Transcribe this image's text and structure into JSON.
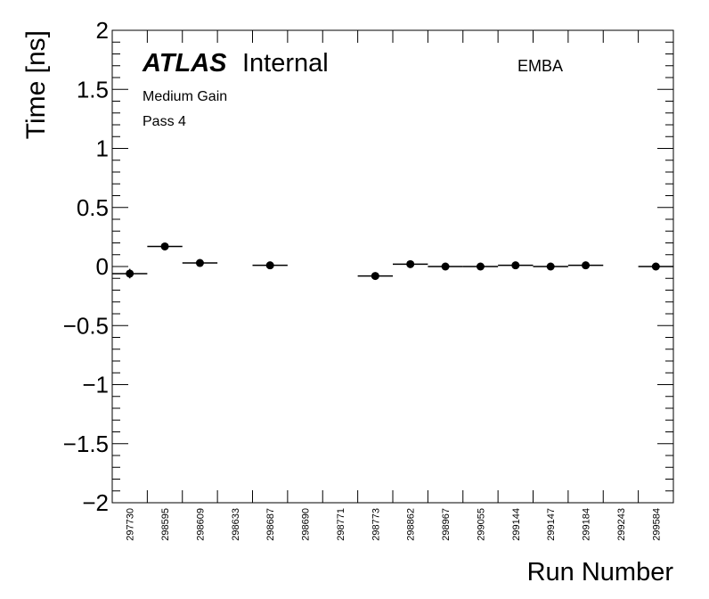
{
  "chart_data": {
    "type": "scatter",
    "title": "",
    "xlabel": "Run Number",
    "ylabel": "Time [ns]",
    "ylim": [
      -2,
      2
    ],
    "yticks": [
      {
        "value": 2,
        "label": "2"
      },
      {
        "value": 1.5,
        "label": "1.5"
      },
      {
        "value": 1,
        "label": "1"
      },
      {
        "value": 0.5,
        "label": "0.5"
      },
      {
        "value": 0,
        "label": "0"
      },
      {
        "value": -0.5,
        "label": "−0.5"
      },
      {
        "value": -1,
        "label": "−1"
      },
      {
        "value": -1.5,
        "label": "−1.5"
      },
      {
        "value": -2,
        "label": "−2"
      }
    ],
    "categories": [
      "297730",
      "298595",
      "298609",
      "298633",
      "298687",
      "298690",
      "298771",
      "298773",
      "298862",
      "298967",
      "299055",
      "299144",
      "299147",
      "299184",
      "299243",
      "299584"
    ],
    "values": [
      -0.06,
      0.17,
      0.03,
      null,
      0.01,
      null,
      null,
      -0.08,
      0.02,
      0.0,
      0.0,
      0.01,
      0.0,
      0.01,
      null,
      0.0
    ],
    "errors": [
      0.04,
      0.02,
      0.01,
      null,
      0.01,
      null,
      null,
      0.01,
      0.01,
      0.01,
      0.01,
      0.01,
      0.01,
      0.01,
      null,
      0.01
    ],
    "grid": false,
    "annotations": {
      "atlas": "ATLAS",
      "internal": "Internal",
      "gain": "Medium Gain",
      "pass": "Pass 4",
      "partition": "EMBA"
    }
  }
}
